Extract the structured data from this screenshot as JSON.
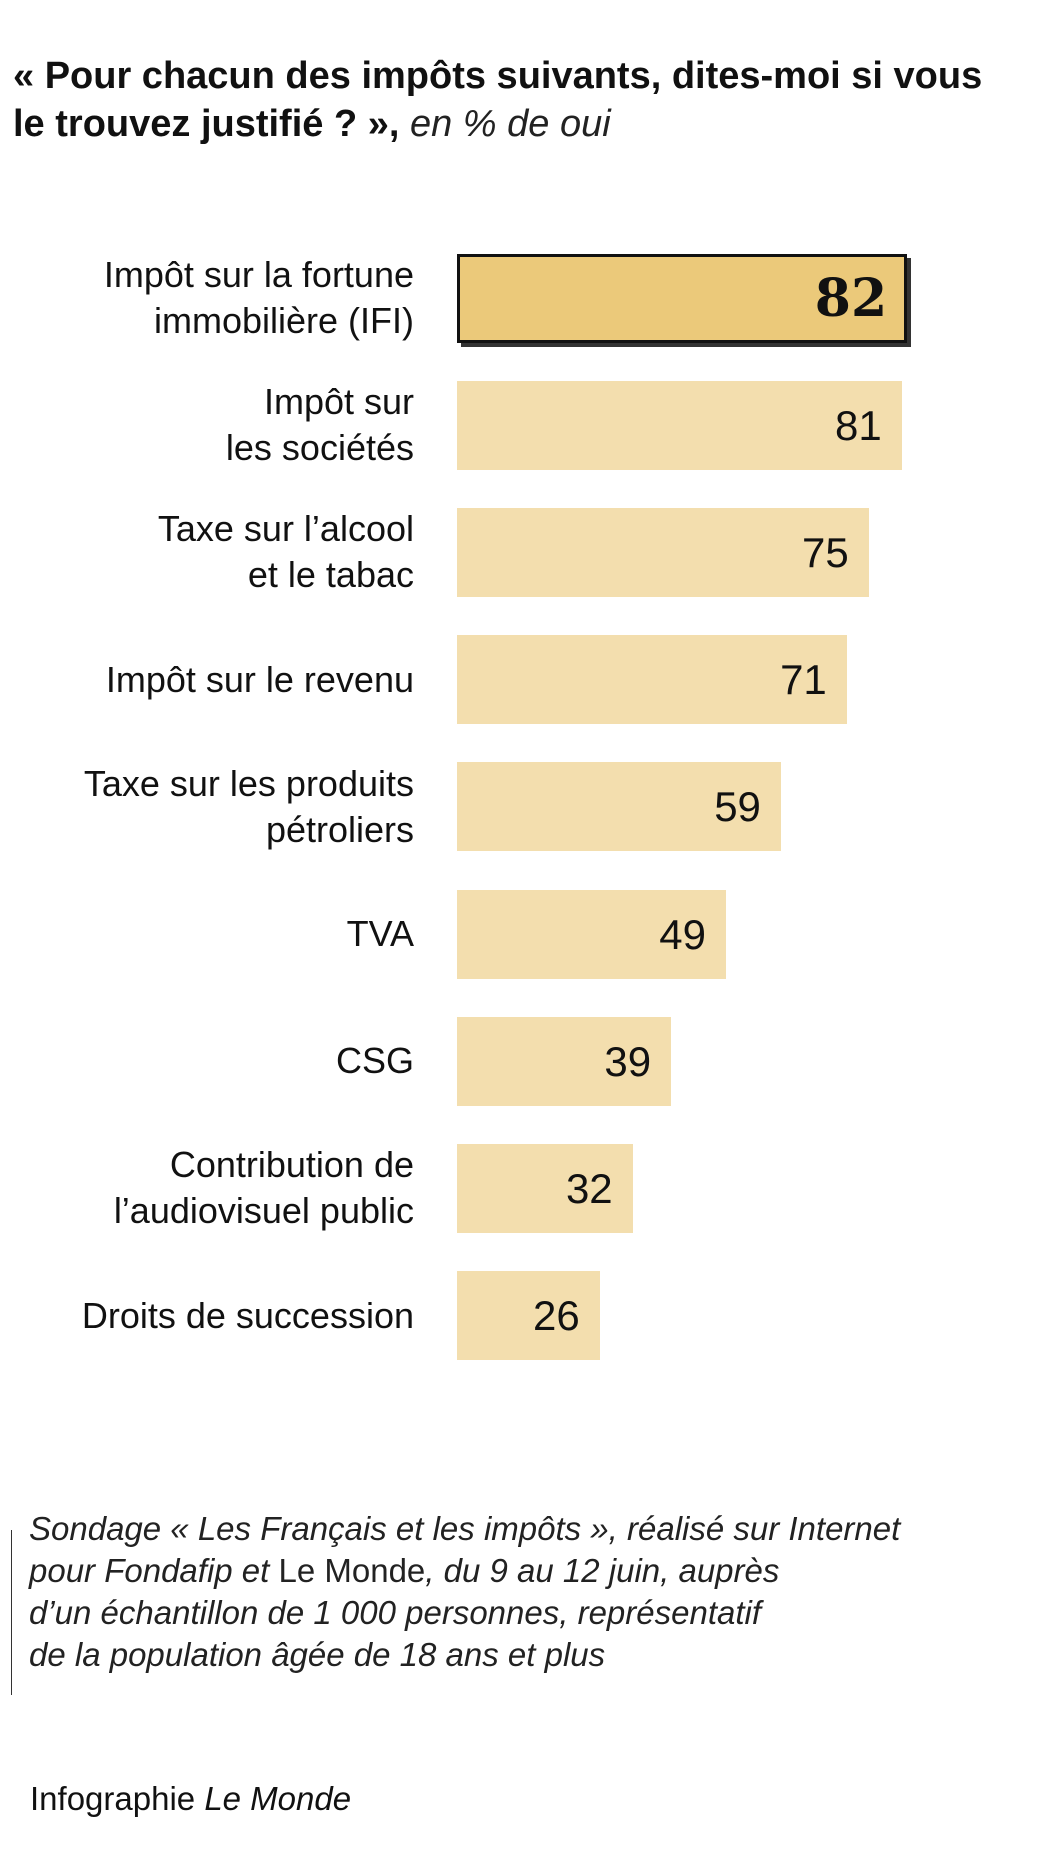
{
  "chart_data": {
    "type": "bar",
    "title": "« Pour chacun des impôts suivants, dites-moi si vous le trouvez justifié ? »,",
    "subtitle": "en % de oui",
    "categories": [
      "Impôt sur la fortune\nimmobilière (IFI)",
      "Impôt sur\nles sociétés",
      "Taxe sur l’alcool\net le tabac",
      "Impôt sur le revenu",
      "Taxe sur les produits\npétroliers",
      "TVA",
      "CSG",
      "Contribution de\nl’audiovisuel public",
      "Droits de succession"
    ],
    "values": [
      82,
      81,
      75,
      71,
      59,
      49,
      39,
      32,
      26
    ],
    "color": "#f3deae",
    "highlight": {
      "index": 0,
      "color": "#ebc97a"
    },
    "source": [
      "Sondage « Les Français et les impôts », réalisé sur Internet\npour Fondafip et ",
      "Le Monde",
      ", du 9 au 12 juin, auprès\nd’un échantillon de 1 000 personnes, représentatif\nde la population âgée de 18 ans et plus"
    ],
    "credit": [
      "Infographie ",
      "Le Monde"
    ]
  }
}
